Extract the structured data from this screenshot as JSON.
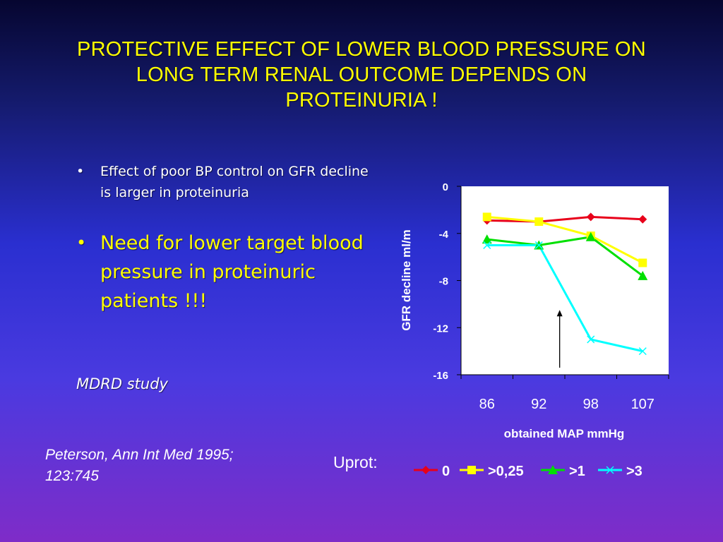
{
  "slide": {
    "title_lines": [
      "PROTECTIVE EFFECT OF LOWER BLOOD PRESSURE ON",
      "LONG TERM RENAL OUTCOME DEPENDS ON",
      "PROTEINURIA !"
    ],
    "bullets": [
      {
        "text": "Effect of poor BP control on GFR decline is larger in proteinuria"
      },
      {
        "text": "Need for lower target blood pressure in proteinuric patients !!!"
      }
    ],
    "bullet_glyph": "•",
    "study": "MDRD study",
    "citation_lines": [
      "Peterson, Ann Int Med 1995;",
      "123:745"
    ],
    "legend_label": "Uprot:"
  },
  "colors": {
    "title": "#ffff00",
    "series_0": "#e8001a",
    "series_025": "#ffff00",
    "series_1": "#00e000",
    "series_3": "#00ffff"
  },
  "chart_data": {
    "type": "line",
    "categories": [
      "86",
      "92",
      "98",
      "107"
    ],
    "xlabel": "obtained MAP mmHg",
    "ylabel": "GFR decline ml/m",
    "ylim": [
      -16,
      0
    ],
    "yticks": [
      0,
      -4,
      -8,
      -12,
      -16
    ],
    "ytick_labels": [
      "0",
      "-4",
      "-8",
      "-12",
      "-16"
    ],
    "legend_position": "bottom",
    "series": [
      {
        "name": "0",
        "values": [
          -2.9,
          -3.0,
          -2.6,
          -2.8
        ],
        "marker": "diamond",
        "color": "#e8001a"
      },
      {
        "name": ">0,25",
        "values": [
          -2.6,
          -3.0,
          -4.2,
          -6.5
        ],
        "marker": "square",
        "color": "#ffff00"
      },
      {
        "name": ">1",
        "values": [
          -4.5,
          -5.0,
          -4.3,
          -7.6
        ],
        "marker": "triangle",
        "color": "#00e000"
      },
      {
        "name": ">3",
        "values": [
          -5.0,
          -5.0,
          -13.0,
          -14.0
        ],
        "marker": "x",
        "color": "#00ffff"
      }
    ],
    "annotation": {
      "type": "arrow",
      "at_x_between": [
        "92",
        "98"
      ],
      "from_y": -15.4,
      "to_y": -10.5
    }
  }
}
